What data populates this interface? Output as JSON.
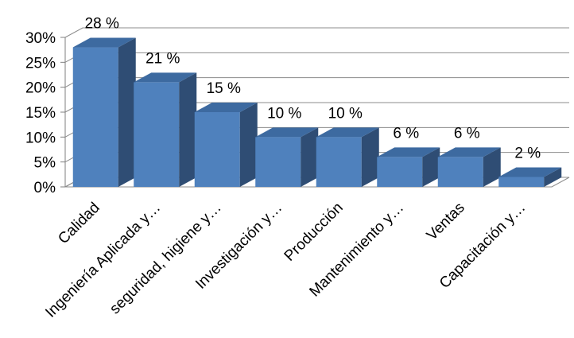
{
  "chart_data": {
    "type": "bar",
    "categories": [
      "Calidad",
      "Ingeniería Aplicada y…",
      "seguridad, higiene y…",
      "Investigación y…",
      "Producción",
      "Mantenimiento y…",
      "Ventas",
      "Capacitación y…"
    ],
    "values": [
      28,
      21,
      15,
      10,
      10,
      6,
      6,
      2
    ],
    "data_labels": [
      "28 %",
      "21 %",
      "15 %",
      "10 %",
      "10 %",
      "6 %",
      "6 %",
      "2 %"
    ],
    "yticks": [
      "0%",
      "5%",
      "10%",
      "15%",
      "20%",
      "25%",
      "30%"
    ],
    "ylim": [
      0,
      30
    ],
    "title": "",
    "xlabel": "",
    "ylabel": "",
    "grid": true,
    "style": "3d-column",
    "colors": {
      "front": "#4f81bd",
      "side": "#2f4d74",
      "top": "#3d6aa0",
      "grid": "#8c8c8c",
      "axis": "#7f7f7f"
    }
  }
}
